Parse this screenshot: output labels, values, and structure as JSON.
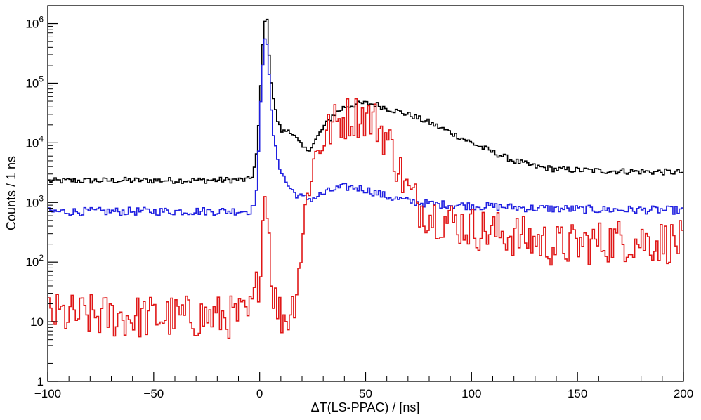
{
  "chart_data": {
    "type": "line",
    "title": "",
    "xlabel": "ΔT(LS-PPAC) / [ns]",
    "ylabel": "Counts / 1 ns",
    "xlim": [
      -100,
      200
    ],
    "ylim": [
      1,
      2000000
    ],
    "yscale": "log",
    "grid": false,
    "xticks": [
      {
        "value": -100,
        "label": "−100"
      },
      {
        "value": -50,
        "label": "−50"
      },
      {
        "value": 0,
        "label": "0"
      },
      {
        "value": 50,
        "label": "50"
      },
      {
        "value": 100,
        "label": "100"
      },
      {
        "value": 150,
        "label": "150"
      },
      {
        "value": 200,
        "label": "200"
      }
    ],
    "yticks": [
      {
        "value": 1,
        "base": "1",
        "exp": ""
      },
      {
        "value": 10,
        "base": "10",
        "exp": ""
      },
      {
        "value": 100,
        "base": "10",
        "exp": "2"
      },
      {
        "value": 1000,
        "base": "10",
        "exp": "3"
      },
      {
        "value": 10000,
        "base": "10",
        "exp": "4"
      },
      {
        "value": 100000,
        "base": "10",
        "exp": "5"
      },
      {
        "value": 1000000,
        "base": "10",
        "exp": "6"
      }
    ],
    "series": [
      {
        "name": "black",
        "color": "#000000",
        "noise": 0.03,
        "points": [
          [
            -100,
            2300
          ],
          [
            -60,
            2350
          ],
          [
            -30,
            2350
          ],
          [
            -5,
            2400
          ],
          [
            -3,
            3000
          ],
          [
            -1,
            8000
          ],
          [
            0,
            40000
          ],
          [
            1,
            200000
          ],
          [
            2,
            900000
          ],
          [
            3,
            1600000
          ],
          [
            4,
            700000
          ],
          [
            5,
            150000
          ],
          [
            7,
            40000
          ],
          [
            9,
            20000
          ],
          [
            11,
            15000
          ],
          [
            14,
            17000
          ],
          [
            17,
            12000
          ],
          [
            20,
            8500
          ],
          [
            22,
            7500
          ],
          [
            25,
            9000
          ],
          [
            30,
            18000
          ],
          [
            35,
            30000
          ],
          [
            40,
            40000
          ],
          [
            45,
            44000
          ],
          [
            50,
            46000
          ],
          [
            55,
            44000
          ],
          [
            60,
            38000
          ],
          [
            70,
            30000
          ],
          [
            80,
            22000
          ],
          [
            90,
            15000
          ],
          [
            100,
            10000
          ],
          [
            110,
            7000
          ],
          [
            120,
            5000
          ],
          [
            130,
            4000
          ],
          [
            140,
            3600
          ],
          [
            160,
            3400
          ],
          [
            180,
            3300
          ],
          [
            200,
            3200
          ]
        ]
      },
      {
        "name": "blue",
        "color": "#2020e0",
        "noise": 0.04,
        "points": [
          [
            -100,
            700
          ],
          [
            -50,
            710
          ],
          [
            -5,
            720
          ],
          [
            -3,
            800
          ],
          [
            -1,
            2000
          ],
          [
            0,
            20000
          ],
          [
            1,
            100000
          ],
          [
            2,
            500000
          ],
          [
            3,
            800000
          ],
          [
            4,
            300000
          ],
          [
            5,
            50000
          ],
          [
            7,
            9000
          ],
          [
            10,
            3500
          ],
          [
            13,
            2000
          ],
          [
            16,
            1500
          ],
          [
            20,
            1200
          ],
          [
            25,
            1150
          ],
          [
            30,
            1400
          ],
          [
            35,
            1650
          ],
          [
            40,
            1800
          ],
          [
            45,
            1800
          ],
          [
            50,
            1650
          ],
          [
            55,
            1450
          ],
          [
            60,
            1250
          ],
          [
            70,
            1050
          ],
          [
            80,
            950
          ],
          [
            100,
            880
          ],
          [
            130,
            800
          ],
          [
            160,
            760
          ],
          [
            200,
            740
          ]
        ]
      },
      {
        "name": "red",
        "color": "#e01818",
        "noise": 0.22,
        "points": [
          [
            -100,
            13
          ],
          [
            -60,
            12
          ],
          [
            -30,
            12
          ],
          [
            -5,
            12
          ],
          [
            -3,
            20
          ],
          [
            0,
            60
          ],
          [
            1,
            300
          ],
          [
            2,
            900
          ],
          [
            3,
            1800
          ],
          [
            4,
            800
          ],
          [
            5,
            100
          ],
          [
            6,
            40
          ],
          [
            8,
            18
          ],
          [
            10,
            13
          ],
          [
            13,
            12
          ],
          [
            16,
            20
          ],
          [
            18,
            60
          ],
          [
            20,
            200
          ],
          [
            22,
            1000
          ],
          [
            24,
            3000
          ],
          [
            27,
            7000
          ],
          [
            30,
            12000
          ],
          [
            35,
            20000
          ],
          [
            40,
            26000
          ],
          [
            45,
            28500
          ],
          [
            50,
            28000
          ],
          [
            55,
            22000
          ],
          [
            60,
            12000
          ],
          [
            63,
            7000
          ],
          [
            66,
            3500
          ],
          [
            70,
            1500
          ],
          [
            75,
            900
          ],
          [
            80,
            650
          ],
          [
            90,
            480
          ],
          [
            100,
            380
          ],
          [
            110,
            320
          ],
          [
            120,
            280
          ],
          [
            130,
            230
          ],
          [
            140,
            185
          ],
          [
            150,
            195
          ],
          [
            160,
            215
          ],
          [
            170,
            235
          ],
          [
            180,
            230
          ],
          [
            190,
            220
          ],
          [
            200,
            210
          ]
        ]
      }
    ]
  }
}
